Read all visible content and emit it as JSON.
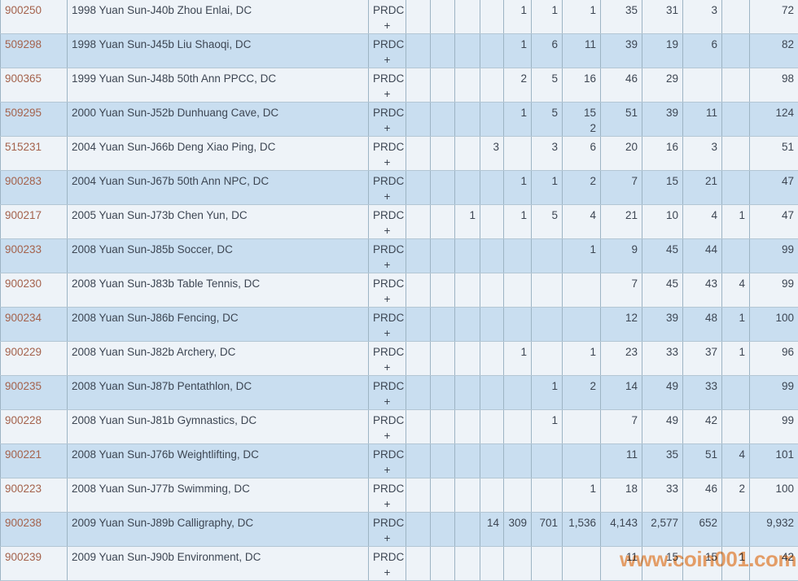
{
  "colors": {
    "row_light": "#eef3f8",
    "row_blue": "#c9def0",
    "border": "#9db4c4",
    "link": "#a4624c",
    "text": "#3d4653",
    "watermark": "#f4a062"
  },
  "watermark": {
    "text": "www.coin001.com"
  },
  "table": {
    "prdc_label": {
      "line1": "PRDC",
      "line2": "+"
    },
    "rows": [
      {
        "id": "900250",
        "desc": "1998 Yuan Sun-J40b Zhou Enlai, DC",
        "cells": [
          "",
          "",
          "",
          "",
          "1",
          "1",
          "1",
          "35",
          "31",
          "3",
          "",
          "72"
        ]
      },
      {
        "id": "509298",
        "desc": "1998 Yuan Sun-J45b Liu Shaoqi, DC",
        "cells": [
          "",
          "",
          "",
          "",
          "1",
          "6",
          "11",
          "39",
          "19",
          "6",
          "",
          "82"
        ]
      },
      {
        "id": "900365",
        "desc": "1999 Yuan Sun-J48b 50th Ann PPCC, DC",
        "cells": [
          "",
          "",
          "",
          "",
          "2",
          "5",
          "16",
          "46",
          "29",
          "",
          "",
          "98"
        ]
      },
      {
        "id": "509295",
        "desc": "2000 Yuan Sun-J52b Dunhuang Cave, DC",
        "cells": [
          "",
          "",
          "",
          "",
          "1",
          "5",
          "15\n2",
          "51",
          "39",
          "11",
          "",
          "124"
        ]
      },
      {
        "id": "515231",
        "desc": "2004 Yuan Sun-J66b Deng Xiao Ping, DC",
        "cells": [
          "",
          "",
          "",
          "3",
          "",
          "3",
          "6",
          "20",
          "16",
          "3",
          "",
          "51"
        ]
      },
      {
        "id": "900283",
        "desc": "2004 Yuan Sun-J67b 50th Ann NPC, DC",
        "cells": [
          "",
          "",
          "",
          "",
          "1",
          "1",
          "2",
          "7",
          "15",
          "21",
          "",
          "47"
        ]
      },
      {
        "id": "900217",
        "desc": "2005 Yuan Sun-J73b Chen Yun, DC",
        "cells": [
          "",
          "",
          "1",
          "",
          "1",
          "5",
          "4",
          "21",
          "10",
          "4",
          "1",
          "47"
        ]
      },
      {
        "id": "900233",
        "desc": "2008 Yuan Sun-J85b Soccer, DC",
        "cells": [
          "",
          "",
          "",
          "",
          "",
          "",
          "1",
          "9",
          "45",
          "44",
          "",
          "99"
        ]
      },
      {
        "id": "900230",
        "desc": "2008 Yuan Sun-J83b Table Tennis, DC",
        "cells": [
          "",
          "",
          "",
          "",
          "",
          "",
          "",
          "7",
          "45",
          "43",
          "4",
          "99"
        ]
      },
      {
        "id": "900234",
        "desc": "2008 Yuan Sun-J86b Fencing, DC",
        "cells": [
          "",
          "",
          "",
          "",
          "",
          "",
          "",
          "12",
          "39",
          "48",
          "1",
          "100"
        ]
      },
      {
        "id": "900229",
        "desc": "2008 Yuan Sun-J82b Archery, DC",
        "cells": [
          "",
          "",
          "",
          "",
          "1",
          "",
          "1",
          "23",
          "33",
          "37",
          "1",
          "96"
        ]
      },
      {
        "id": "900235",
        "desc": "2008 Yuan Sun-J87b Pentathlon, DC",
        "cells": [
          "",
          "",
          "",
          "",
          "",
          "1",
          "2",
          "14",
          "49",
          "33",
          "",
          "99"
        ]
      },
      {
        "id": "900228",
        "desc": "2008 Yuan Sun-J81b Gymnastics, DC",
        "cells": [
          "",
          "",
          "",
          "",
          "",
          "1",
          "",
          "7",
          "49",
          "42",
          "",
          "99"
        ]
      },
      {
        "id": "900221",
        "desc": "2008 Yuan Sun-J76b Weightlifting, DC",
        "cells": [
          "",
          "",
          "",
          "",
          "",
          "",
          "",
          "11",
          "35",
          "51",
          "4",
          "101"
        ]
      },
      {
        "id": "900223",
        "desc": "2008 Yuan Sun-J77b Swimming, DC",
        "cells": [
          "",
          "",
          "",
          "",
          "",
          "",
          "1",
          "18",
          "33",
          "46",
          "2",
          "100"
        ]
      },
      {
        "id": "900238",
        "desc": "2009 Yuan Sun-J89b Calligraphy, DC",
        "cells": [
          "",
          "",
          "",
          "14",
          "309",
          "701",
          "1,536",
          "4,143",
          "2,577",
          "652",
          "",
          "9,932"
        ]
      },
      {
        "id": "900239",
        "desc": "2009 Yuan Sun-J90b Environment, DC",
        "cells": [
          "",
          "",
          "",
          "",
          "",
          "",
          "",
          "11",
          "15",
          "15",
          "1",
          "42"
        ]
      }
    ]
  }
}
